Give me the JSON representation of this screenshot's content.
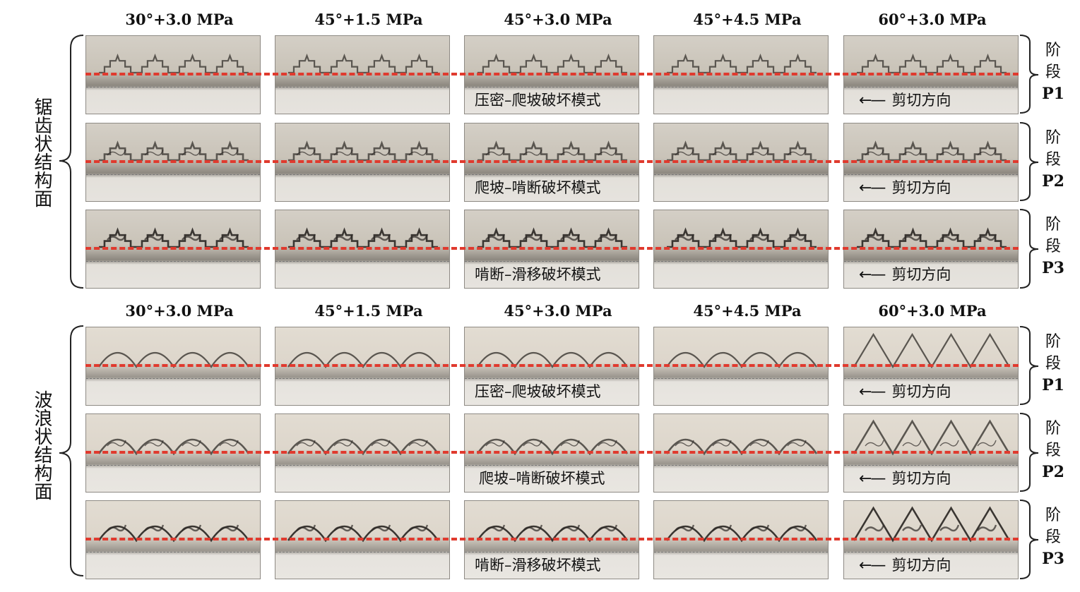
{
  "groups": [
    {
      "title": "锯齿状结构面",
      "column_headers": [
        "30°+3.0 MPa",
        "45°+1.5 MPa",
        "45°+3.0 MPa",
        "45°+4.5 MPa",
        "60°+3.0 MPa"
      ],
      "rows": [
        {
          "mode": "压密–爬坡破坏模式",
          "direction": "剪切方向",
          "stage_label": "阶段",
          "stage_code": "P1"
        },
        {
          "mode": "爬坡–啃断破坏模式",
          "direction": "剪切方向",
          "stage_label": "阶段",
          "stage_code": "P2"
        },
        {
          "mode": "啃断–滑移破坏模式",
          "direction": "剪切方向",
          "stage_label": "阶段",
          "stage_code": "P3"
        }
      ]
    },
    {
      "title": "波浪状结构面",
      "column_headers": [
        "30°+3.0 MPa",
        "45°+1.5 MPa",
        "45°+3.0 MPa",
        "45°+4.5 MPa",
        "60°+3.0 MPa"
      ],
      "rows": [
        {
          "mode": "压密–爬坡破坏模式",
          "direction": "剪切方向",
          "stage_label": "阶段",
          "stage_code": "P1"
        },
        {
          "mode": "爬坡–啃断破坏模式",
          "direction": "剪切方向",
          "stage_label": "阶段",
          "stage_code": "P2"
        },
        {
          "mode": "啃断–滑移破坏模式",
          "direction": "剪切方向",
          "stage_label": "阶段",
          "stage_code": "P3"
        }
      ]
    }
  ],
  "arrow_symbol": "←—",
  "colors": {
    "dashed_line": "#e03a2e",
    "specimen": "#d8d2c8"
  }
}
